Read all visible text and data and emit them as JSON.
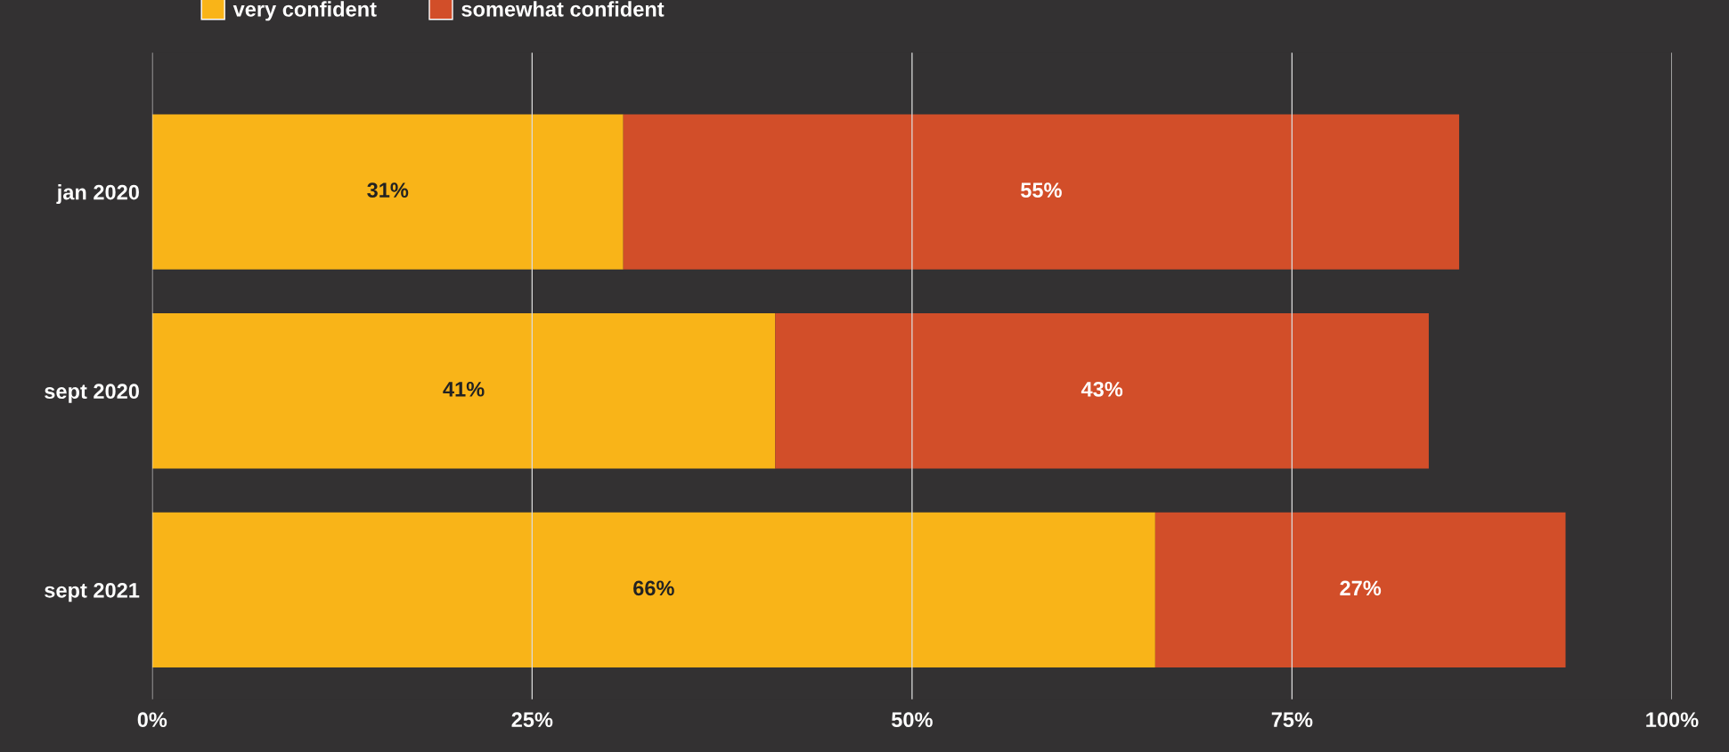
{
  "chart_data": {
    "type": "bar",
    "orientation": "horizontal",
    "stacked": true,
    "categories": [
      "jan 2020",
      "sept 2020",
      "sept 2021"
    ],
    "series": [
      {
        "name": "very confident",
        "color": "#f9b418",
        "values": [
          31,
          41,
          66
        ],
        "value_labels": [
          "31%",
          "41%",
          "66%"
        ]
      },
      {
        "name": "somewhat confident",
        "color": "#d24e29",
        "values": [
          55,
          43,
          27
        ],
        "value_labels": [
          "55%",
          "43%",
          "27%"
        ]
      }
    ],
    "xlim": [
      0,
      100
    ],
    "xticks": [
      {
        "value": 0,
        "label": "0%"
      },
      {
        "value": 25,
        "label": "25%"
      },
      {
        "value": 50,
        "label": "50%"
      },
      {
        "value": 75,
        "label": "75%"
      },
      {
        "value": 100,
        "label": "100%"
      }
    ],
    "grid": "x",
    "legend": "top left"
  }
}
